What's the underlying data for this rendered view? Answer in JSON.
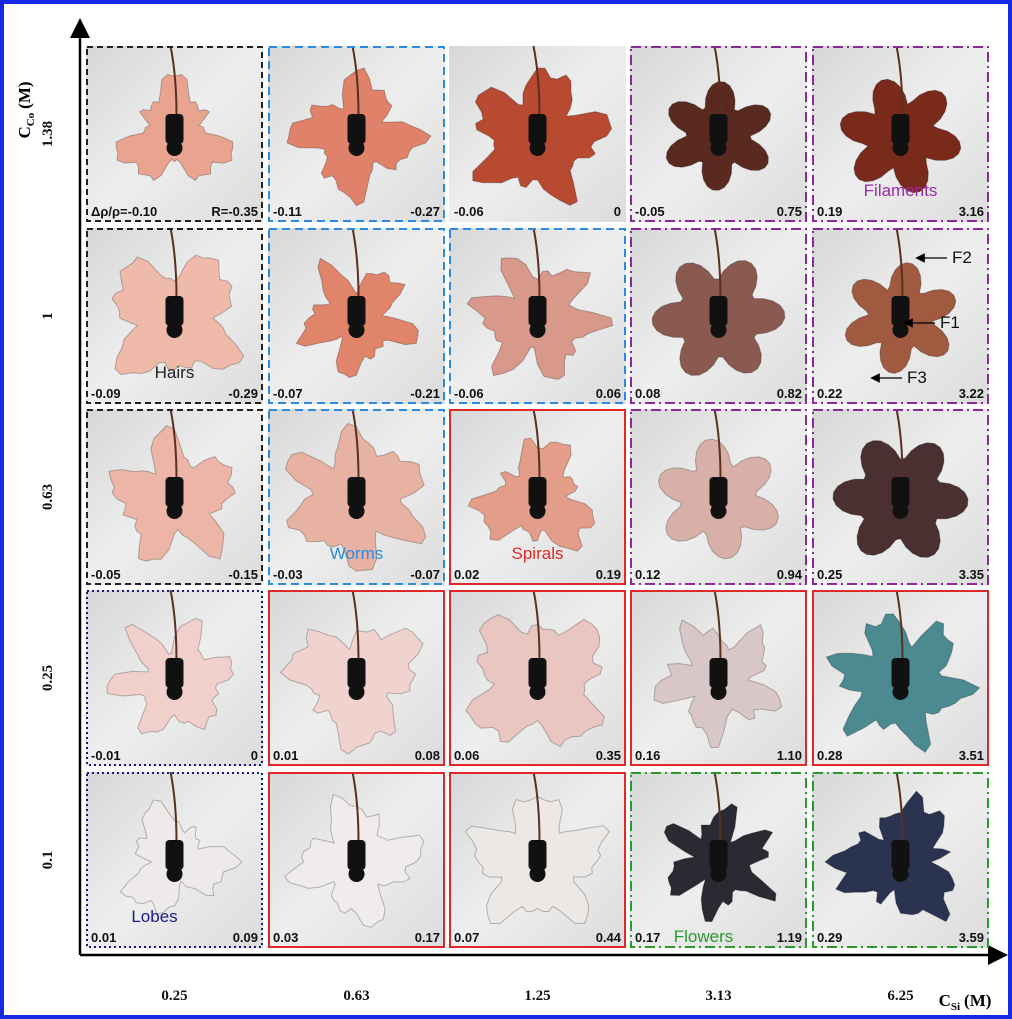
{
  "figure": {
    "y_axis": {
      "symbol": "C",
      "subscript": "Co",
      "unit": "(M)",
      "ticks": [
        "1.38",
        "1",
        "0.63",
        "0.25",
        "0.1"
      ]
    },
    "x_axis": {
      "symbol": "C",
      "subscript": "Si",
      "unit": "(M)",
      "ticks": [
        "0.25",
        "0.63",
        "1.25",
        "3.13",
        "6.25"
      ]
    },
    "rows": [
      {
        "cells": [
          {
            "left": "Δρ/ρ=-0.10",
            "right": "R=-0.35"
          },
          {
            "left": "-0.11",
            "right": "-0.27"
          },
          {
            "left": "-0.06",
            "right": "0"
          },
          {
            "left": "-0.05",
            "right": "0.75"
          },
          {
            "left": "0.19",
            "right": "3.16",
            "label": "Filaments"
          }
        ]
      },
      {
        "cells": [
          {
            "left": "-0.09",
            "right": "-0.29",
            "label": "Hairs"
          },
          {
            "left": "-0.07",
            "right": "-0.21"
          },
          {
            "left": "-0.06",
            "right": "0.06"
          },
          {
            "left": "0.08",
            "right": "0.82"
          },
          {
            "left": "0.22",
            "right": "3.22",
            "markers": [
              "F2",
              "F1",
              "F3"
            ]
          }
        ]
      },
      {
        "cells": [
          {
            "left": "-0.05",
            "right": "-0.15"
          },
          {
            "left": "-0.03",
            "right": "-0.07",
            "label": "Worms"
          },
          {
            "left": "0.02",
            "right": "0.19",
            "label": "Spirals"
          },
          {
            "left": "0.12",
            "right": "0.94"
          },
          {
            "left": "0.25",
            "right": "3.35"
          }
        ]
      },
      {
        "cells": [
          {
            "left": "-0.01",
            "right": "0"
          },
          {
            "left": "0.01",
            "right": "0.08"
          },
          {
            "left": "0.06",
            "right": "0.35"
          },
          {
            "left": "0.16",
            "right": "1.10"
          },
          {
            "left": "0.28",
            "right": "3.51"
          }
        ]
      },
      {
        "cells": [
          {
            "left": "0.01",
            "right": "0.09",
            "label": "Lobes"
          },
          {
            "left": "0.03",
            "right": "0.17"
          },
          {
            "left": "0.07",
            "right": "0.44"
          },
          {
            "left": "0.17",
            "right": "1.19",
            "label": "Flowers"
          },
          {
            "left": "0.29",
            "right": "3.59"
          }
        ]
      }
    ]
  }
}
